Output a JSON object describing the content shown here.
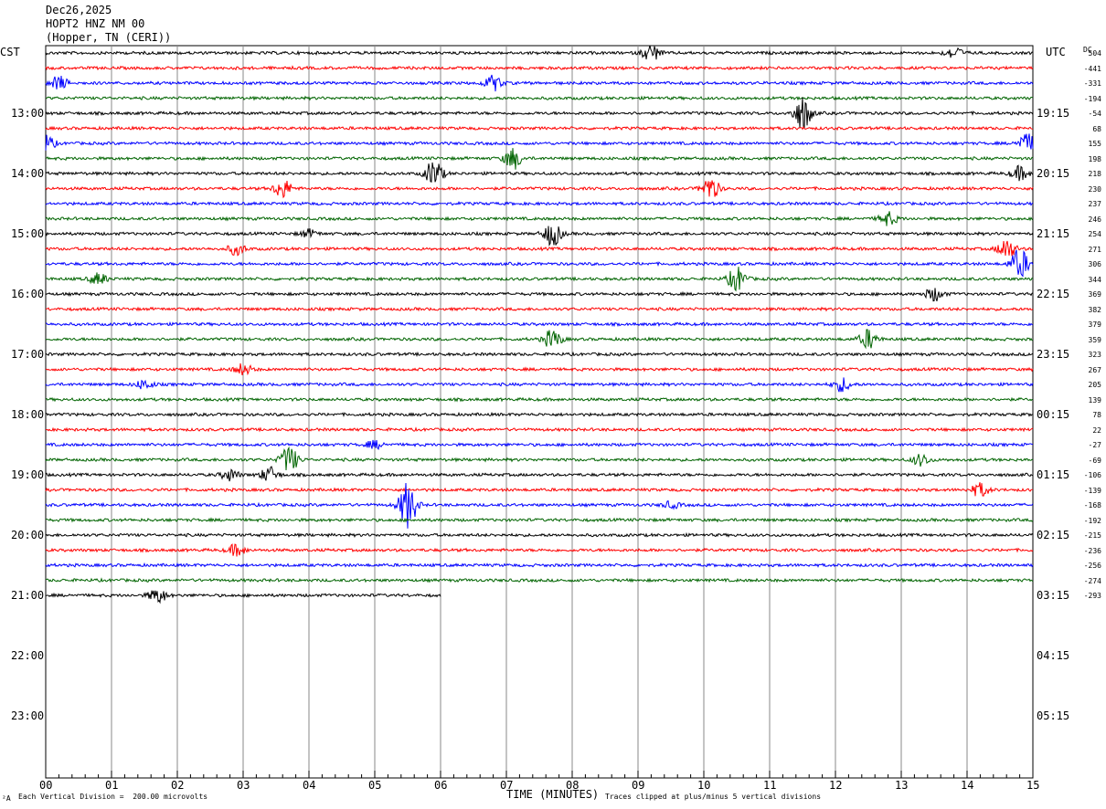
{
  "header": {
    "date": "Dec26,2025",
    "station": "HOPT2 HNZ NM 00",
    "location": "(Hopper, TN (CERI))"
  },
  "left_axis_label": "CST",
  "right_axis_label": "UTC",
  "dc_header": "DC",
  "footer": {
    "scale_note": "Each Vertical Division =  200.00 microvolts",
    "xlabel": "TIME (MINUTES)",
    "clip_note": "Traces clipped at plus/minus 5 vertical divisions",
    "corner_mark": "²A"
  },
  "colors": {
    "trace_cycle": [
      "#000000",
      "#ff0000",
      "#0000ff",
      "#006400"
    ],
    "grid": "#000000"
  },
  "chart_data": {
    "type": "line",
    "title": "",
    "xlabel": "TIME (MINUTES)",
    "ylabel": "",
    "xlim": [
      0,
      15
    ],
    "x_ticks": [
      "00",
      "01",
      "02",
      "03",
      "04",
      "05",
      "06",
      "07",
      "08",
      "09",
      "10",
      "11",
      "12",
      "13",
      "14",
      "15"
    ],
    "hour_labels_cst": [
      "13:00",
      "14:00",
      "15:00",
      "16:00",
      "17:00",
      "18:00",
      "19:00",
      "20:00",
      "21:00",
      "22:00",
      "23:00"
    ],
    "hour_labels_utc": [
      "19:15",
      "20:15",
      "21:15",
      "22:15",
      "23:15",
      "00:15",
      "01:15",
      "02:15",
      "03:15",
      "04:15",
      "05:15"
    ],
    "dc_offsets": [
      504,
      -441,
      -331,
      -194,
      -54,
      68,
      155,
      198,
      218,
      230,
      237,
      246,
      254,
      271,
      306,
      344,
      369,
      382,
      379,
      359,
      323,
      267,
      205,
      139,
      78,
      22,
      -27,
      -69,
      -106,
      -139,
      -168,
      -192,
      -215,
      -236,
      -256,
      -274,
      -293
    ],
    "trace_count": 37,
    "last_trace_end_minute": 6,
    "grid": true,
    "events": [
      {
        "trace": 0,
        "minute": 9.2,
        "amp": 2.2
      },
      {
        "trace": 0,
        "minute": 13.8,
        "amp": 1.5
      },
      {
        "trace": 2,
        "minute": 0.2,
        "amp": 1.8
      },
      {
        "trace": 2,
        "minute": 6.8,
        "amp": 2.0
      },
      {
        "trace": 4,
        "minute": 11.5,
        "amp": 4.5
      },
      {
        "trace": 6,
        "minute": 0.0,
        "amp": 2.2
      },
      {
        "trace": 6,
        "minute": 14.9,
        "amp": 2.5
      },
      {
        "trace": 7,
        "minute": 7.1,
        "amp": 2.8
      },
      {
        "trace": 8,
        "minute": 5.9,
        "amp": 3.5
      },
      {
        "trace": 8,
        "minute": 14.8,
        "amp": 1.8
      },
      {
        "trace": 9,
        "minute": 3.6,
        "amp": 2.5
      },
      {
        "trace": 9,
        "minute": 10.1,
        "amp": 3.0
      },
      {
        "trace": 11,
        "minute": 12.8,
        "amp": 1.8
      },
      {
        "trace": 12,
        "minute": 7.7,
        "amp": 3.2
      },
      {
        "trace": 12,
        "minute": 4.0,
        "amp": 1.0
      },
      {
        "trace": 13,
        "minute": 14.6,
        "amp": 2.8
      },
      {
        "trace": 13,
        "minute": 2.9,
        "amp": 1.5
      },
      {
        "trace": 14,
        "minute": 14.8,
        "amp": 4.0
      },
      {
        "trace": 15,
        "minute": 10.5,
        "amp": 3.2
      },
      {
        "trace": 15,
        "minute": 0.8,
        "amp": 1.5
      },
      {
        "trace": 16,
        "minute": 13.5,
        "amp": 1.8
      },
      {
        "trace": 19,
        "minute": 7.7,
        "amp": 2.5
      },
      {
        "trace": 19,
        "minute": 12.5,
        "amp": 2.5
      },
      {
        "trace": 21,
        "minute": 3.0,
        "amp": 1.5
      },
      {
        "trace": 22,
        "minute": 12.1,
        "amp": 1.8
      },
      {
        "trace": 22,
        "minute": 1.5,
        "amp": 1.2
      },
      {
        "trace": 26,
        "minute": 5.0,
        "amp": 1.0
      },
      {
        "trace": 27,
        "minute": 3.7,
        "amp": 3.5
      },
      {
        "trace": 27,
        "minute": 13.3,
        "amp": 1.5
      },
      {
        "trace": 28,
        "minute": 2.8,
        "amp": 1.5
      },
      {
        "trace": 28,
        "minute": 3.4,
        "amp": 2.0
      },
      {
        "trace": 29,
        "minute": 14.2,
        "amp": 1.8
      },
      {
        "trace": 30,
        "minute": 5.5,
        "amp": 6.0
      },
      {
        "trace": 30,
        "minute": 9.5,
        "amp": 0.8
      },
      {
        "trace": 33,
        "minute": 2.9,
        "amp": 1.5
      },
      {
        "trace": 36,
        "minute": 1.7,
        "amp": 2.0
      }
    ]
  }
}
